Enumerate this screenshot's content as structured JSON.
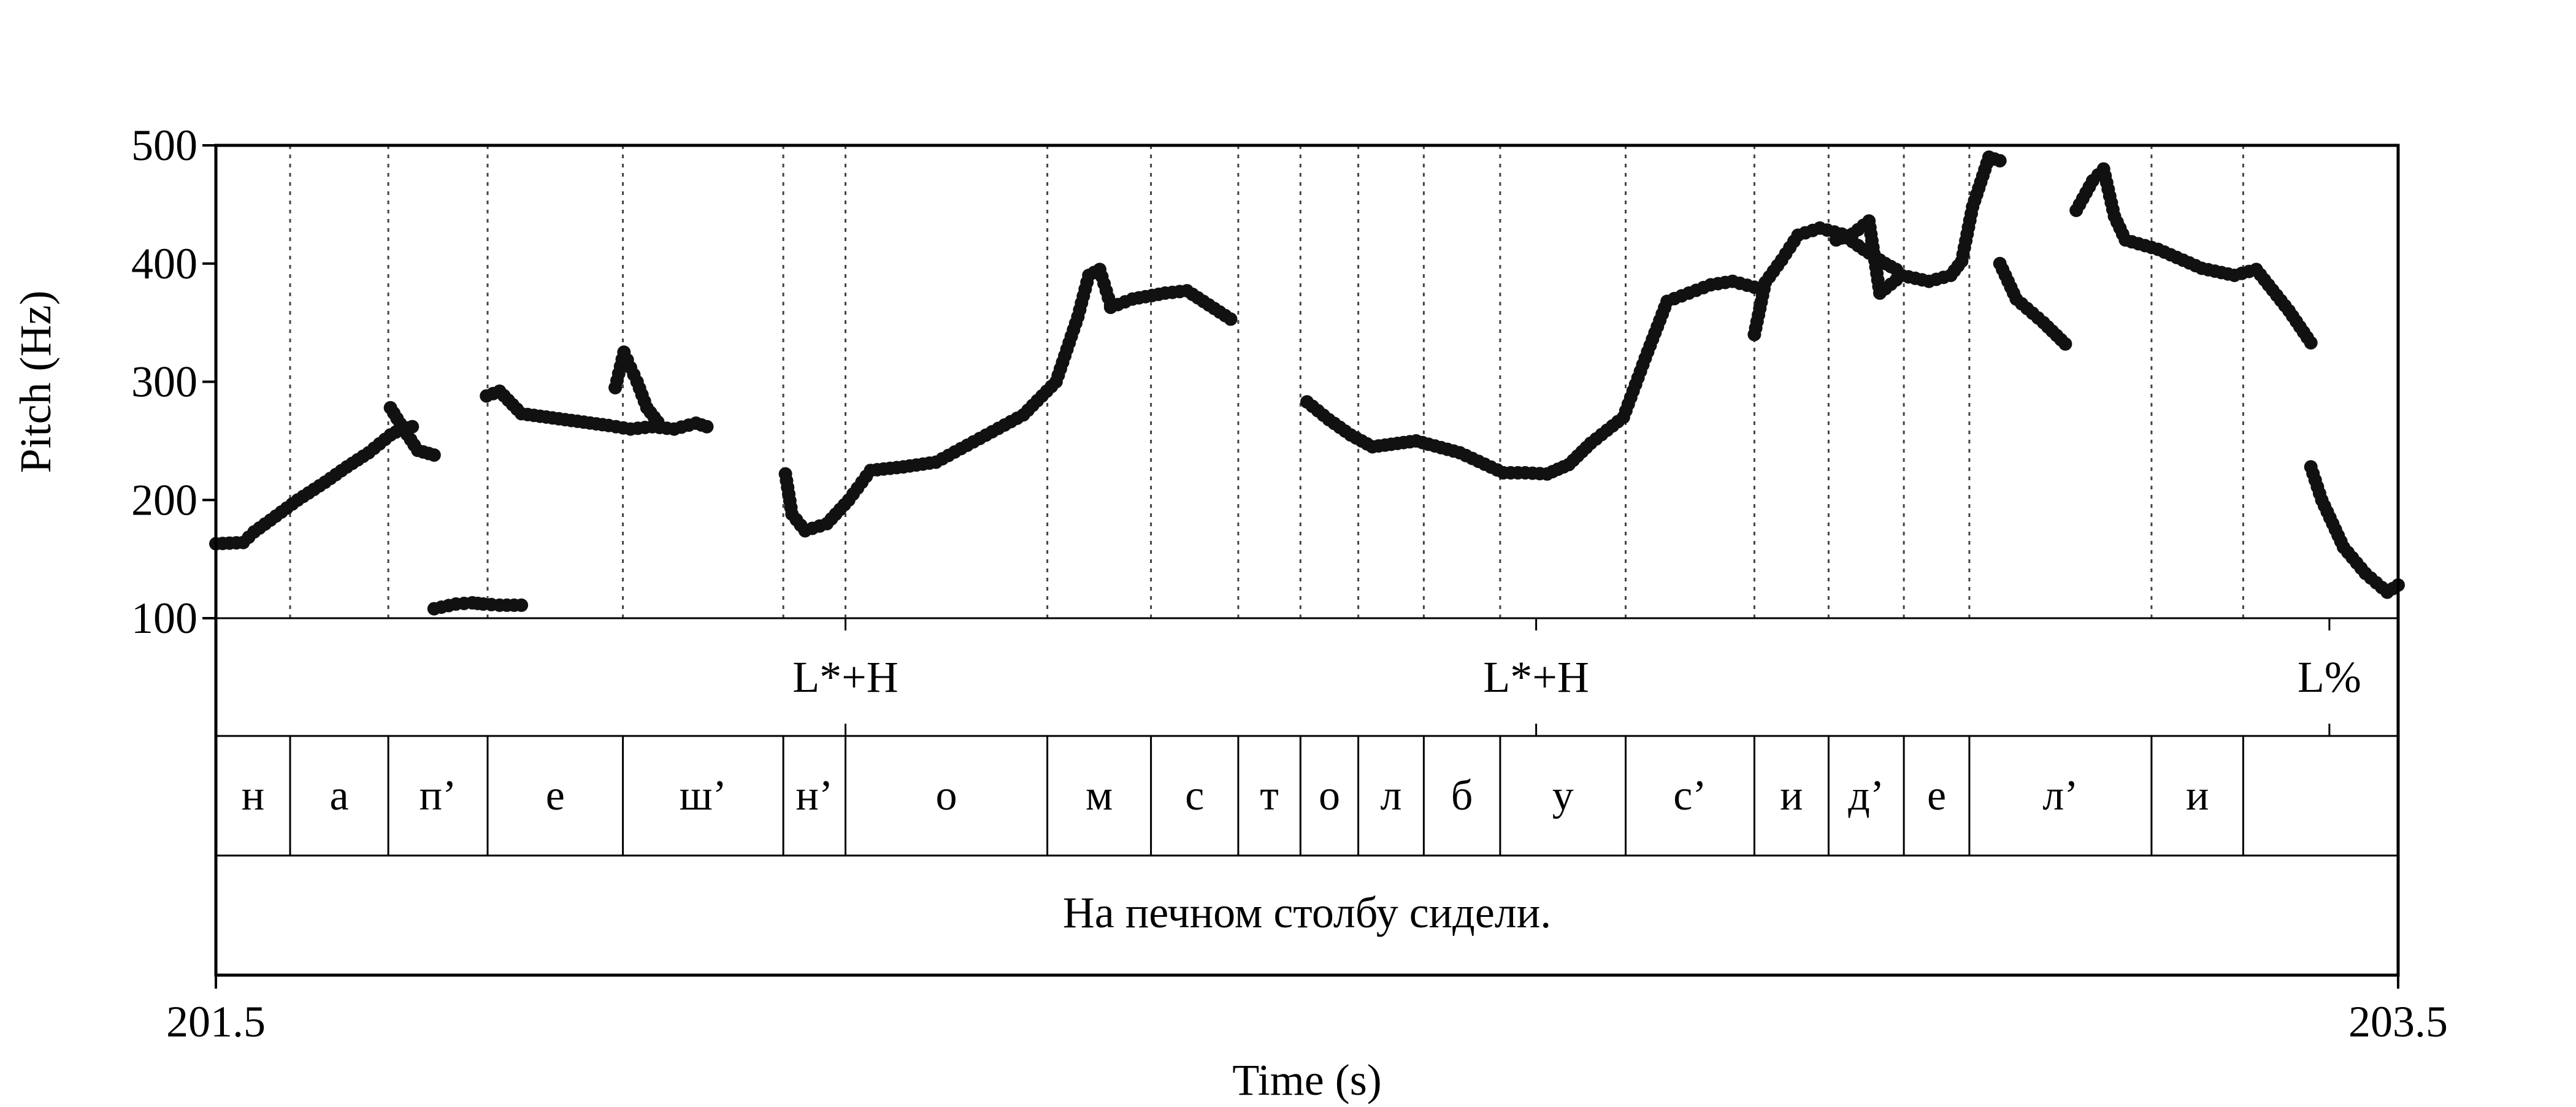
{
  "chart_data": {
    "type": "scatter",
    "title": "",
    "xlabel": "Time (s)",
    "ylabel": "Pitch (Hz)",
    "xlim": [
      201.5,
      203.5
    ],
    "ylim": [
      100,
      500
    ],
    "x_ticks": [
      "201.5",
      "203.5"
    ],
    "y_ticks": [
      "100",
      "200",
      "300",
      "400",
      "500"
    ],
    "marker_color": "#111111",
    "segment_boundaries": [
      201.568,
      201.658,
      201.749,
      201.873,
      202.02,
      202.077,
      202.262,
      202.357,
      202.437,
      202.494,
      202.547,
      202.607,
      202.677,
      202.792,
      202.91,
      202.978,
      203.047,
      203.107,
      203.274,
      203.358
    ],
    "tones": [
      {
        "time": 202.077,
        "label": "L*+H"
      },
      {
        "time": 202.71,
        "label": "L*+H"
      },
      {
        "time": 203.437,
        "label": "L%"
      }
    ],
    "segments": [
      "н",
      "а",
      "п’",
      "е",
      "ш’",
      "н’",
      "о",
      "м",
      "с",
      "т",
      "о",
      "л",
      "б",
      "у",
      "с’",
      "и",
      "д’",
      "е",
      "л’",
      "и"
    ],
    "sentence": "На печном столбу сидели.",
    "pitch_contour": [
      {
        "x": [
          201.5,
          201.525,
          201.535,
          201.55,
          201.575,
          201.6,
          201.62,
          201.64,
          201.66,
          201.67,
          201.68
        ],
        "y": [
          163,
          164,
          173,
          183,
          200,
          215,
          228,
          240,
          255,
          260,
          262
        ]
      },
      {
        "x": [
          201.66,
          201.672,
          201.685,
          201.7
        ],
        "y": [
          278,
          260,
          242,
          238
        ]
      },
      {
        "x": [
          201.7,
          201.72,
          201.735,
          201.745,
          201.76,
          201.78
        ],
        "y": [
          108,
          112,
          113,
          112,
          111,
          111
        ]
      },
      {
        "x": [
          201.748,
          201.76,
          201.78,
          201.82,
          201.86,
          201.88,
          201.9,
          201.92,
          201.94,
          201.95
        ],
        "y": [
          288,
          292,
          273,
          268,
          263,
          260,
          262,
          260,
          265,
          262
        ]
      },
      {
        "x": [
          201.866,
          201.874,
          201.88,
          201.886,
          201.895,
          201.905
        ],
        "y": [
          295,
          325,
          312,
          300,
          278,
          266
        ]
      },
      {
        "x": [
          202.022,
          202.028,
          202.04,
          202.06,
          202.08,
          202.1,
          202.13,
          202.16,
          202.2,
          202.24,
          202.27,
          202.29,
          202.3,
          202.31,
          202.32
        ],
        "y": [
          222,
          188,
          174,
          180,
          200,
          225,
          228,
          232,
          252,
          272,
          300,
          355,
          390,
          395,
          365
        ]
      },
      {
        "x": [
          202.32,
          202.34,
          202.37,
          202.39,
          202.41,
          202.43
        ],
        "y": [
          363,
          370,
          375,
          377,
          365,
          353
        ]
      },
      {
        "x": [
          202.5,
          202.52,
          202.54,
          202.56,
          202.6,
          202.64,
          202.68,
          202.7,
          202.72,
          202.74,
          202.76,
          202.79,
          202.81,
          202.83,
          202.85,
          202.87,
          202.89,
          202.91
        ],
        "y": [
          283,
          268,
          255,
          245,
          250,
          240,
          223,
          223,
          222,
          230,
          248,
          270,
          320,
          368,
          375,
          382,
          385,
          380
        ]
      },
      {
        "x": [
          202.91,
          202.92,
          202.935,
          202.95,
          202.97,
          202.99,
          203.01,
          203.03,
          203.04
        ],
        "y": [
          340,
          384,
          403,
          424,
          430,
          425,
          412,
          400,
          395
        ]
      },
      {
        "x": [
          202.985,
          203.0,
          203.015,
          203.025,
          203.045,
          203.07,
          203.09,
          203.1,
          203.11,
          203.125,
          203.135
        ],
        "y": [
          420,
          425,
          436,
          375,
          390,
          385,
          390,
          402,
          448,
          490,
          487
        ]
      },
      {
        "x": [
          203.135,
          203.15,
          203.175,
          203.195
        ],
        "y": [
          400,
          370,
          350,
          332
        ]
      },
      {
        "x": [
          203.205,
          203.22,
          203.23,
          203.24,
          203.25,
          203.28,
          203.32,
          203.35,
          203.37,
          203.4,
          203.42
        ],
        "y": [
          445,
          470,
          480,
          440,
          420,
          412,
          396,
          390,
          395,
          360,
          333
        ]
      },
      {
        "x": [
          203.42,
          203.43,
          203.45,
          203.47,
          203.49,
          203.5
        ],
        "y": [
          228,
          200,
          160,
          138,
          122,
          128
        ]
      }
    ]
  }
}
